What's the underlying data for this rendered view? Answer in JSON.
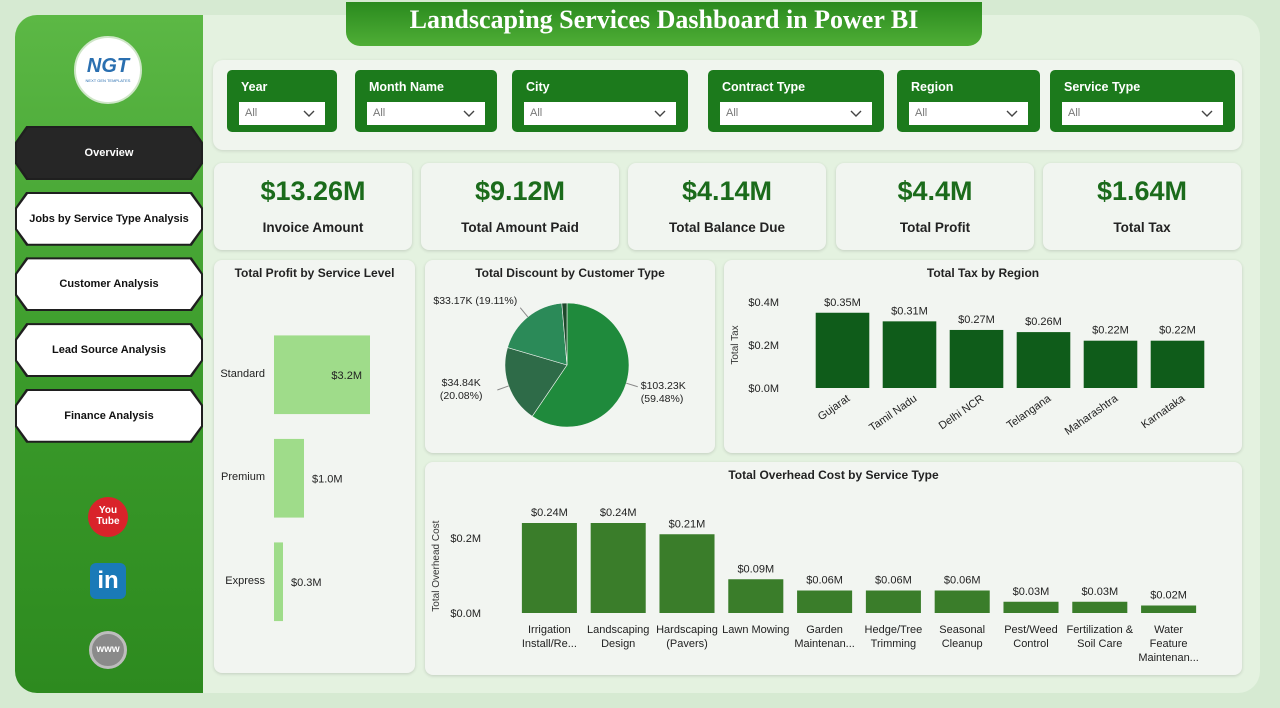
{
  "header": {
    "title": "Landscaping Services Dashboard in Power BI"
  },
  "logo": {
    "text": "NGT",
    "subtitle": "NEXT GEN TEMPLATES"
  },
  "nav": [
    "Overview",
    "Jobs by Service Type Analysis",
    "Customer Analysis",
    "Lead Source Analysis",
    "Finance Analysis"
  ],
  "filters": [
    {
      "label": "Year",
      "value": "All"
    },
    {
      "label": "Month Name",
      "value": "All"
    },
    {
      "label": "City",
      "value": "All"
    },
    {
      "label": "Contract Type",
      "value": "All"
    },
    {
      "label": "Region",
      "value": "All"
    },
    {
      "label": "Service Type",
      "value": "All"
    }
  ],
  "kpis": [
    {
      "value": "$13.26M",
      "label": "Invoice Amount"
    },
    {
      "value": "$9.12M",
      "label": "Total Amount Paid"
    },
    {
      "value": "$4.14M",
      "label": "Total Balance Due"
    },
    {
      "value": "$4.4M",
      "label": "Total Profit"
    },
    {
      "value": "$1.64M",
      "label": "Total Tax"
    }
  ],
  "social": [
    "You Tube",
    "in",
    "www"
  ],
  "chart_data": [
    {
      "type": "hbar",
      "title": "Total Profit by Service Level",
      "categories": [
        "Standard",
        "Premium",
        "Express"
      ],
      "values": [
        3.2,
        1.0,
        0.3
      ],
      "value_labels": [
        "$3.2M",
        "$1.0M",
        "$0.3M"
      ],
      "color": "#9fdc8a"
    },
    {
      "type": "pie",
      "title": "Total Discount by Customer Type",
      "values": [
        103.23,
        34.84,
        33.17,
        2.31
      ],
      "value_labels": [
        "$103.23K (59.48%)",
        "$34.84K (20.08%)",
        "$33.17K (19.11%)",
        null
      ],
      "colors": [
        "#1f8a3c",
        "#2e6b48",
        "#2b8a58",
        "#1d4a2c"
      ]
    },
    {
      "type": "bar",
      "title": "Total Tax by Region",
      "ylabel": "Total Tax",
      "categories": [
        "Gujarat",
        "Tamil Nadu",
        "Delhi NCR",
        "Telangana",
        "Maharashtra",
        "Karnataka"
      ],
      "values": [
        0.35,
        0.31,
        0.27,
        0.26,
        0.22,
        0.22
      ],
      "value_labels": [
        "$0.35M",
        "$0.31M",
        "$0.27M",
        "$0.26M",
        "$0.22M",
        "$0.22M"
      ],
      "color": "#0f5c1a",
      "ylim": [
        0,
        0.4
      ],
      "yticks": [
        {
          "value": 0,
          "label": "$0.0M"
        },
        {
          "value": 0.2,
          "label": "$0.2M"
        },
        {
          "value": 0.4,
          "label": "$0.4M"
        }
      ],
      "rotate_labels": true
    },
    {
      "type": "bar",
      "title": "Total Overhead Cost by Service Type",
      "ylabel": "Total Overhead Cost",
      "categories": [
        "Irrigation Install/Re...",
        "Landscaping Design",
        "Hardscaping (Pavers)",
        "Lawn Mowing",
        "Garden Maintenan...",
        "Hedge/Tree Trimming",
        "Seasonal Cleanup",
        "Pest/Weed Control",
        "Fertilization & Soil Care",
        "Water Feature Maintenan..."
      ],
      "values": [
        0.24,
        0.24,
        0.21,
        0.09,
        0.06,
        0.06,
        0.06,
        0.03,
        0.03,
        0.02
      ],
      "value_labels": [
        "$0.24M",
        "$0.24M",
        "$0.21M",
        "$0.09M",
        "$0.06M",
        "$0.06M",
        "$0.06M",
        "$0.03M",
        "$0.03M",
        "$0.02M"
      ],
      "color": "#3a7d2a",
      "ylim": [
        0,
        0.25
      ],
      "yticks": [
        {
          "value": 0,
          "label": "$0.0M"
        },
        {
          "value": 0.2,
          "label": "$0.2M"
        }
      ],
      "rotate_labels": false
    }
  ]
}
